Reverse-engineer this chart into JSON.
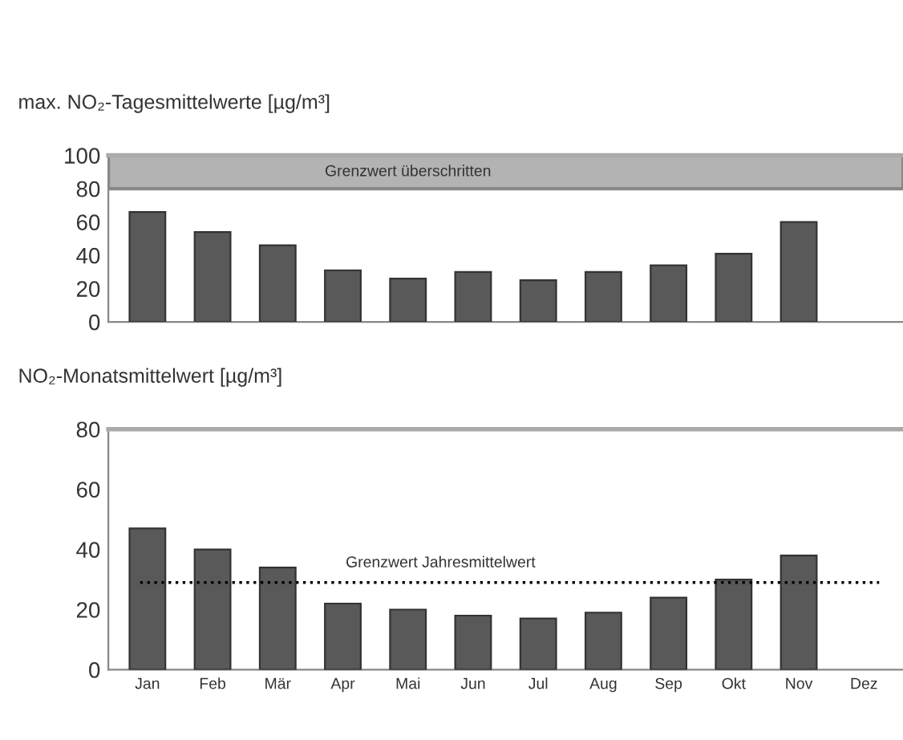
{
  "chart_data": [
    {
      "type": "bar",
      "title": "max. NO₂-Tagesmittelwerte [µg/m³]",
      "categories": [
        null,
        null,
        null,
        null,
        null,
        null,
        null,
        null,
        null,
        null,
        null,
        null
      ],
      "values": [
        66,
        54,
        46,
        31,
        26,
        30,
        25,
        30,
        34,
        41,
        60,
        null
      ],
      "color": "#595959",
      "ylim": [
        0,
        100
      ],
      "yticks": [
        0,
        20,
        40,
        60,
        80,
        100
      ],
      "tick_labels": "y",
      "grid": false,
      "bands": [
        {
          "axis": "y",
          "from": 80,
          "to": 100,
          "label": "Grenzwert überschritten",
          "color": "#b3b3b3"
        }
      ]
    },
    {
      "type": "bar",
      "title": "NO₂-Monatsmittelwert [µg/m³]",
      "categories": [
        "Jan",
        "Feb",
        "Mär",
        "Apr",
        "Mai",
        "Jun",
        "Jul",
        "Aug",
        "Sep",
        "Okt",
        "Nov",
        "Dez"
      ],
      "values": [
        47,
        40,
        34,
        22,
        20,
        18,
        17,
        19,
        24,
        30,
        38,
        null
      ],
      "color": "#595959",
      "ylim": [
        0,
        80
      ],
      "yticks": [
        0,
        20,
        40,
        60,
        80
      ],
      "grid": false,
      "ref_lines": [
        {
          "axis": "y",
          "value": 29,
          "label": "Grenzwert Jahresmittelwert",
          "color": "#000000",
          "line_style": "dotted"
        }
      ]
    }
  ]
}
